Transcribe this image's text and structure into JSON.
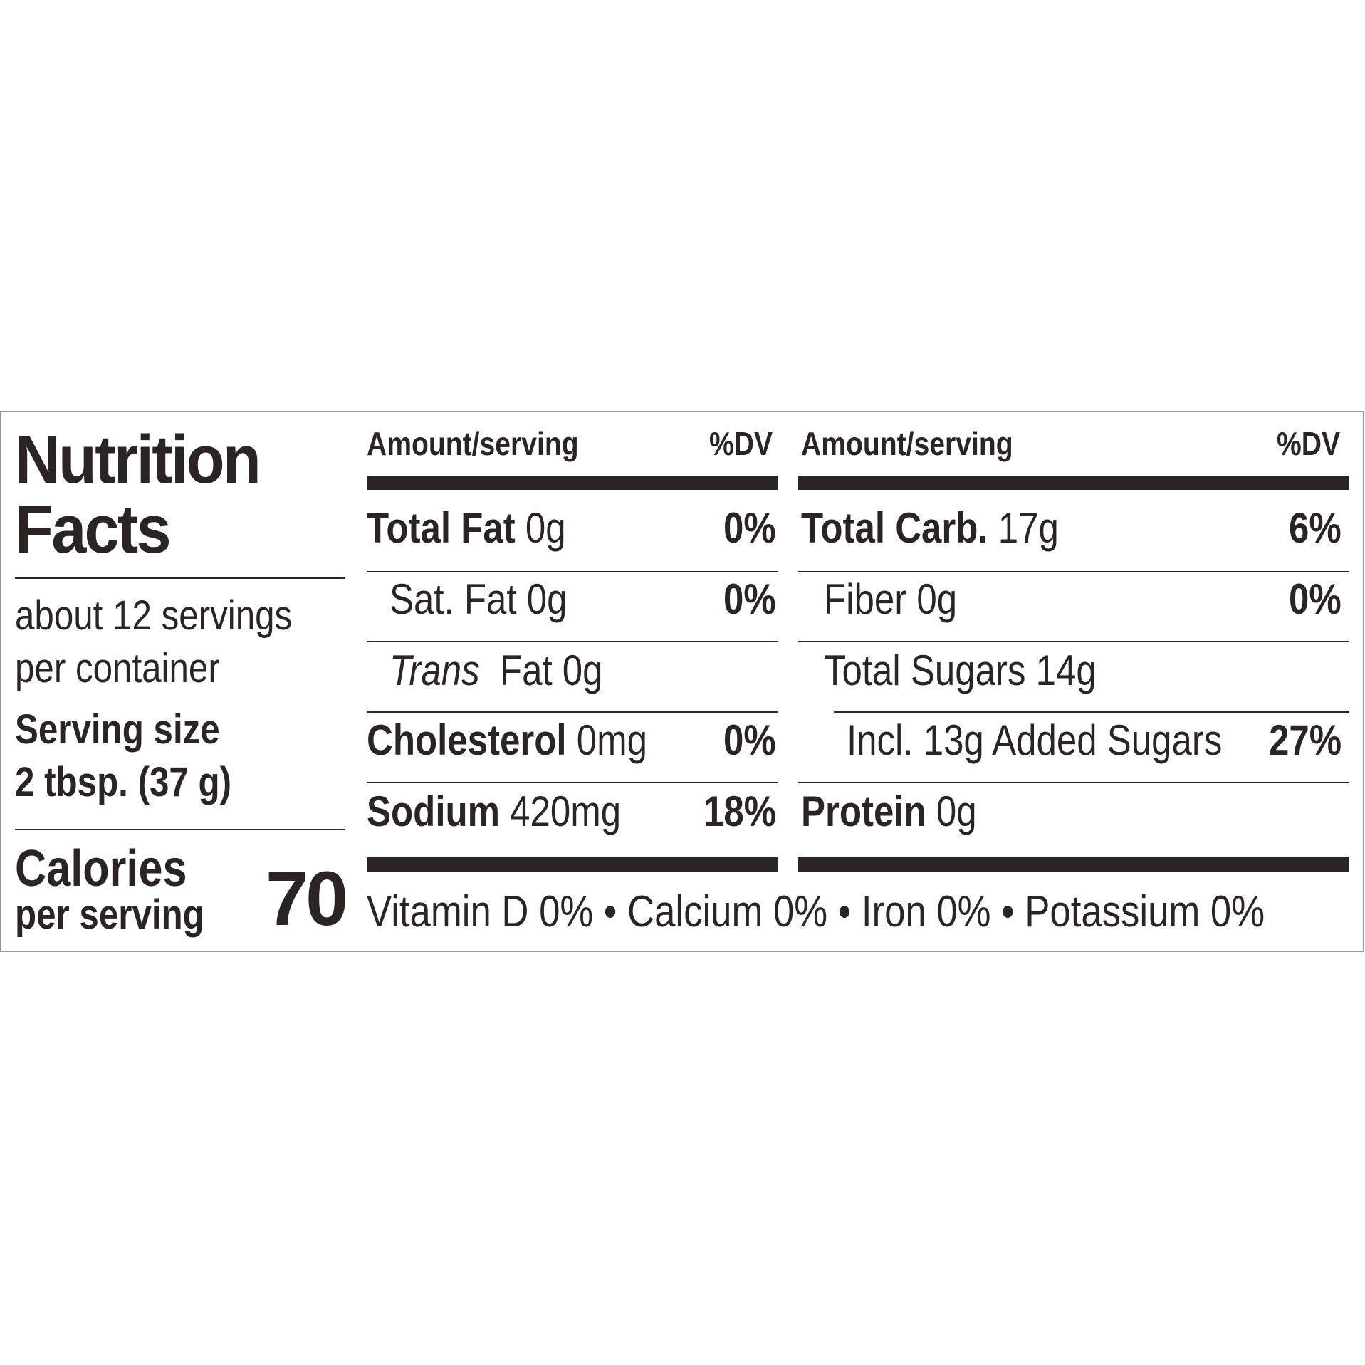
{
  "title_line1": "Nutrition",
  "title_line2": "Facts",
  "servings_line1": "about 12 servings",
  "servings_line2": "per container",
  "serving_size_label": "Serving size",
  "serving_size_value": "2 tbsp. (37 g)",
  "calories_label": "Calories",
  "calories_sub": "per serving",
  "calories_value": "70",
  "left_col": {
    "header_amount": "Amount/serving",
    "header_dv": "%DV",
    "rows": [
      {
        "name": "Total Fat",
        "amount": "0g",
        "dv": "0%"
      },
      {
        "name": "Sat. Fat",
        "amount": "0g",
        "dv": "0%"
      },
      {
        "name": "Trans",
        "amount": "Fat 0g",
        "dv": ""
      },
      {
        "name": "Cholesterol",
        "amount": "0mg",
        "dv": "0%"
      },
      {
        "name": "Sodium",
        "amount": "420mg",
        "dv": "18%"
      }
    ]
  },
  "right_col": {
    "header_amount": "Amount/serving",
    "header_dv": "%DV",
    "rows": [
      {
        "name": "Total Carb.",
        "amount": "17g",
        "dv": "6%"
      },
      {
        "name": "Fiber",
        "amount": "0g",
        "dv": "0%"
      },
      {
        "name": "Total Sugars",
        "amount": "14g",
        "dv": ""
      },
      {
        "name": "Incl. 13g Added Sugars",
        "amount": "",
        "dv": "27%"
      },
      {
        "name": "Protein",
        "amount": "0g",
        "dv": ""
      }
    ]
  },
  "footer": "Vitamin D 0% • Calcium 0% • Iron 0% • Potassium 0%"
}
